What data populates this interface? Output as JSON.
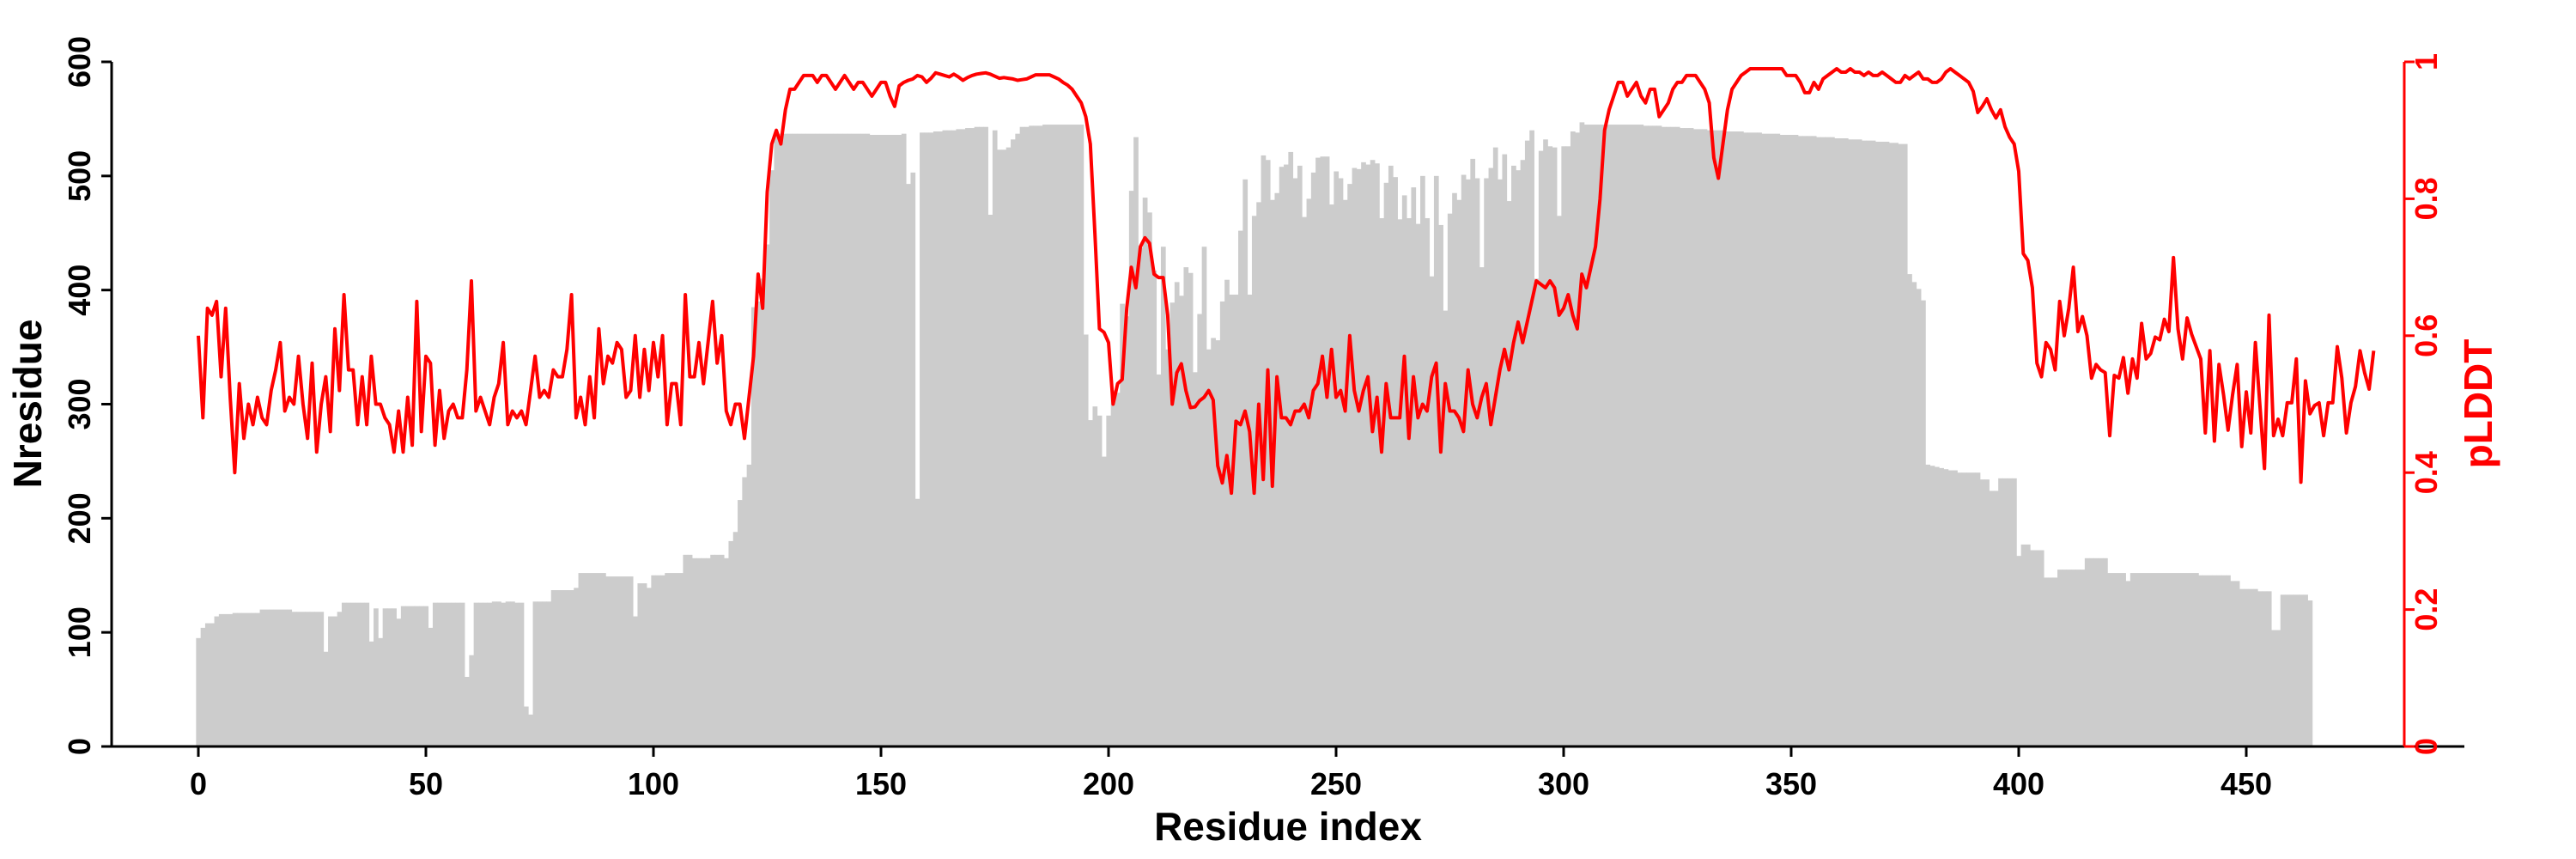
{
  "chart_data": {
    "type": "bar+line",
    "xlabel": "Residue index",
    "ylabel_left": "Nresidue",
    "ylabel_right": "pLDDT",
    "xlim": [
      -19,
      497
    ],
    "ylim_left": [
      0,
      600
    ],
    "ylim_right": [
      0,
      1
    ],
    "x_ticks": [
      "0",
      "50",
      "100",
      "150",
      "200",
      "250",
      "300",
      "350",
      "400",
      "450"
    ],
    "y_left_ticks": [
      "0",
      "100",
      "200",
      "300",
      "400",
      "500",
      "600"
    ],
    "y_right_ticks": [
      "0",
      "0.2",
      "0.4",
      "0.6",
      "0.8",
      "1"
    ],
    "grid": false,
    "colors": {
      "bars": "#cccccc",
      "line": "#ff0000",
      "axis": "#000000",
      "right_axis": "#ff0000"
    },
    "series": [
      {
        "name": "Nresidue",
        "type": "bar",
        "axis": "left",
        "values": [
          95,
          104,
          108,
          108,
          114,
          116,
          116,
          116,
          117,
          117,
          117,
          117,
          117,
          117,
          120,
          120,
          120,
          120,
          120,
          120,
          120,
          118,
          118,
          118,
          118,
          118,
          118,
          118,
          83,
          114,
          114,
          118,
          126,
          126,
          126,
          126,
          126,
          126,
          92,
          121,
          95,
          121,
          121,
          121,
          112,
          123,
          123,
          123,
          123,
          123,
          123,
          104,
          126,
          126,
          126,
          126,
          126,
          126,
          126,
          61,
          80,
          126,
          126,
          126,
          126,
          127,
          127,
          126,
          127,
          127,
          126,
          126,
          35,
          28,
          127,
          127,
          127,
          127,
          137,
          137,
          137,
          137,
          137,
          139,
          152,
          152,
          152,
          152,
          152,
          152,
          149,
          149,
          149,
          149,
          149,
          149,
          114,
          143,
          143,
          139,
          150,
          150,
          150,
          152,
          152,
          152,
          152,
          168,
          168,
          165,
          165,
          165,
          165,
          168,
          168,
          168,
          165,
          180,
          188,
          216,
          236,
          247,
          385,
          390,
          410,
          440,
          505,
          535,
          537,
          537,
          537,
          537,
          537,
          537,
          537,
          537,
          537,
          537,
          537,
          537,
          537,
          537,
          537,
          537,
          537,
          537,
          537,
          537,
          536,
          536,
          536,
          536,
          536,
          536,
          536,
          537,
          493,
          503,
          217,
          538,
          538,
          538,
          539,
          539,
          540,
          540,
          540,
          541,
          541,
          542,
          542,
          543,
          543,
          543,
          466,
          540,
          523,
          523,
          525,
          532,
          537,
          543,
          543,
          544,
          544,
          544,
          545,
          545,
          545,
          545,
          545,
          545,
          545,
          545,
          545,
          361,
          286,
          298,
          290,
          254,
          290,
          312,
          310,
          388,
          377,
          487,
          534,
          437,
          481,
          468,
          417,
          326,
          438,
          348,
          389,
          407,
          395,
          420,
          415,
          328,
          379,
          438,
          348,
          358,
          356,
          390,
          409,
          396,
          396,
          452,
          497,
          396,
          465,
          477,
          518,
          514,
          479,
          485,
          508,
          510,
          521,
          498,
          509,
          464,
          480,
          503,
          516,
          517,
          517,
          475,
          504,
          498,
          479,
          493,
          507,
          506,
          512,
          510,
          514,
          511,
          463,
          494,
          509,
          499,
          462,
          483,
          463,
          490,
          458,
          500,
          463,
          412,
          500,
          457,
          382,
          467,
          485,
          479,
          501,
          497,
          515,
          498,
          420,
          498,
          507,
          525,
          497,
          519,
          478,
          509,
          505,
          514,
          531,
          540,
          410,
          522,
          532,
          526,
          525,
          465,
          526,
          526,
          539,
          538,
          547,
          545,
          545,
          545,
          545,
          545,
          545,
          545,
          545,
          545,
          545,
          545,
          545,
          545,
          544,
          544,
          544,
          544,
          543,
          543,
          543,
          543,
          542,
          542,
          542,
          541,
          541,
          541,
          540,
          540,
          540,
          540,
          539,
          539,
          539,
          539,
          538,
          538,
          538,
          538,
          537,
          537,
          537,
          537,
          536,
          536,
          536,
          536,
          535,
          535,
          535,
          535,
          534,
          534,
          534,
          534,
          533,
          533,
          533,
          532,
          532,
          532,
          531,
          531,
          531,
          530,
          530,
          530,
          529,
          529,
          528,
          528,
          414,
          407,
          401,
          391,
          247,
          246,
          245,
          244,
          243,
          242,
          242,
          240,
          240,
          240,
          240,
          240,
          234,
          234,
          224,
          224,
          235,
          235,
          235,
          235,
          167,
          177,
          177,
          172,
          172,
          172,
          148,
          148,
          148,
          155,
          155,
          155,
          155,
          155,
          155,
          165,
          165,
          165,
          165,
          165,
          152,
          152,
          152,
          152,
          145,
          152,
          152,
          152,
          152,
          152,
          152,
          152,
          152,
          152,
          152,
          152,
          152,
          152,
          152,
          152,
          150,
          150,
          150,
          150,
          150,
          150,
          150,
          145,
          145,
          138,
          138,
          138,
          138,
          136,
          136,
          136,
          102,
          102,
          133,
          133,
          133,
          133,
          133,
          133,
          128
        ]
      },
      {
        "name": "pLDDT",
        "type": "line",
        "axis": "right",
        "values": [
          0.6,
          0.48,
          0.64,
          0.63,
          0.65,
          0.54,
          0.64,
          0.51,
          0.4,
          0.53,
          0.45,
          0.5,
          0.47,
          0.51,
          0.48,
          0.47,
          0.52,
          0.55,
          0.59,
          0.49,
          0.51,
          0.5,
          0.57,
          0.5,
          0.45,
          0.56,
          0.43,
          0.5,
          0.54,
          0.46,
          0.61,
          0.52,
          0.66,
          0.55,
          0.55,
          0.47,
          0.54,
          0.47,
          0.57,
          0.5,
          0.5,
          0.48,
          0.47,
          0.43,
          0.49,
          0.43,
          0.51,
          0.44,
          0.65,
          0.46,
          0.57,
          0.56,
          0.44,
          0.52,
          0.45,
          0.49,
          0.5,
          0.48,
          0.48,
          0.55,
          0.68,
          0.49,
          0.51,
          0.49,
          0.47,
          0.51,
          0.53,
          0.59,
          0.47,
          0.49,
          0.48,
          0.49,
          0.47,
          0.52,
          0.57,
          0.51,
          0.52,
          0.51,
          0.55,
          0.54,
          0.54,
          0.58,
          0.66,
          0.48,
          0.51,
          0.47,
          0.54,
          0.48,
          0.61,
          0.53,
          0.57,
          0.56,
          0.59,
          0.58,
          0.51,
          0.52,
          0.6,
          0.51,
          0.58,
          0.52,
          0.59,
          0.54,
          0.6,
          0.47,
          0.53,
          0.53,
          0.47,
          0.66,
          0.54,
          0.54,
          0.59,
          0.53,
          0.59,
          0.65,
          0.56,
          0.6,
          0.49,
          0.47,
          0.5,
          0.5,
          0.45,
          0.51,
          0.57,
          0.69,
          0.64,
          0.81,
          0.88,
          0.9,
          0.88,
          0.93,
          0.96,
          0.96,
          0.97,
          0.98,
          0.98,
          0.98,
          0.97,
          0.98,
          0.98,
          0.97,
          0.96,
          0.97,
          0.98,
          0.97,
          0.96,
          0.97,
          0.97,
          0.96,
          0.95,
          0.96,
          0.97,
          0.97,
          0.95,
          0.935,
          0.965,
          0.97,
          0.973,
          0.975,
          0.98,
          0.978,
          0.97,
          0.976,
          0.984,
          0.982,
          0.98,
          0.978,
          0.982,
          0.978,
          0.973,
          0.977,
          0.98,
          0.982,
          0.983,
          0.984,
          0.982,
          0.979,
          0.976,
          0.977,
          0.976,
          0.975,
          0.973,
          0.974,
          0.975,
          0.978,
          0.981,
          0.981,
          0.981,
          0.981,
          0.978,
          0.975,
          0.97,
          0.966,
          0.96,
          0.95,
          0.94,
          0.92,
          0.88,
          0.75,
          0.61,
          0.605,
          0.59,
          0.5,
          0.53,
          0.536,
          0.64,
          0.7,
          0.67,
          0.73,
          0.743,
          0.735,
          0.69,
          0.685,
          0.685,
          0.63,
          0.5,
          0.546,
          0.559,
          0.52,
          0.495,
          0.496,
          0.505,
          0.51,
          0.52,
          0.506,
          0.41,
          0.385,
          0.425,
          0.37,
          0.475,
          0.47,
          0.49,
          0.46,
          0.37,
          0.5,
          0.39,
          0.55,
          0.38,
          0.54,
          0.48,
          0.48,
          0.47,
          0.49,
          0.49,
          0.5,
          0.48,
          0.52,
          0.53,
          0.57,
          0.51,
          0.58,
          0.51,
          0.52,
          0.49,
          0.6,
          0.52,
          0.49,
          0.52,
          0.54,
          0.46,
          0.51,
          0.43,
          0.53,
          0.48,
          0.48,
          0.48,
          0.57,
          0.45,
          0.54,
          0.48,
          0.5,
          0.49,
          0.54,
          0.56,
          0.43,
          0.53,
          0.49,
          0.49,
          0.48,
          0.46,
          0.55,
          0.5,
          0.48,
          0.51,
          0.53,
          0.47,
          0.51,
          0.55,
          0.58,
          0.55,
          0.59,
          0.62,
          0.59,
          0.62,
          0.65,
          0.68,
          0.675,
          0.67,
          0.68,
          0.67,
          0.63,
          0.64,
          0.66,
          0.63,
          0.61,
          0.69,
          0.67,
          0.7,
          0.73,
          0.8,
          0.9,
          0.93,
          0.95,
          0.97,
          0.97,
          0.95,
          0.96,
          0.97,
          0.95,
          0.94,
          0.96,
          0.96,
          0.92,
          0.93,
          0.94,
          0.96,
          0.97,
          0.97,
          0.98,
          0.98,
          0.98,
          0.97,
          0.96,
          0.94,
          0.86,
          0.83,
          0.88,
          0.93,
          0.96,
          0.97,
          0.98,
          0.985,
          0.99,
          0.99,
          0.99,
          0.99,
          0.99,
          0.99,
          0.99,
          0.99,
          0.98,
          0.98,
          0.98,
          0.97,
          0.955,
          0.955,
          0.97,
          0.96,
          0.975,
          0.98,
          0.985,
          0.99,
          0.985,
          0.985,
          0.99,
          0.985,
          0.985,
          0.98,
          0.985,
          0.98,
          0.98,
          0.985,
          0.98,
          0.975,
          0.97,
          0.97,
          0.98,
          0.975,
          0.98,
          0.985,
          0.975,
          0.975,
          0.97,
          0.97,
          0.975,
          0.985,
          0.99,
          0.985,
          0.98,
          0.975,
          0.97,
          0.957,
          0.926,
          0.935,
          0.946,
          0.93,
          0.918,
          0.93,
          0.905,
          0.89,
          0.88,
          0.84,
          0.72,
          0.71,
          0.67,
          0.56,
          0.54,
          0.59,
          0.58,
          0.55,
          0.65,
          0.6,
          0.64,
          0.7,
          0.606,
          0.628,
          0.6,
          0.538,
          0.558,
          0.55,
          0.546,
          0.454,
          0.542,
          0.538,
          0.568,
          0.516,
          0.566,
          0.538,
          0.618,
          0.566,
          0.574,
          0.598,
          0.594,
          0.624,
          0.606,
          0.714,
          0.61,
          0.566,
          0.626,
          0.602,
          0.584,
          0.566,
          0.458,
          0.578,
          0.446,
          0.558,
          0.514,
          0.462,
          0.514,
          0.558,
          0.438,
          0.518,
          0.458,
          0.59,
          0.498,
          0.406,
          0.63,
          0.454,
          0.478,
          0.454,
          0.502,
          0.502,
          0.566,
          0.386,
          0.534,
          0.486,
          0.498,
          0.502,
          0.454,
          0.502,
          0.502,
          0.584,
          0.538,
          0.458,
          0.502,
          0.526,
          0.578,
          0.546,
          0.522,
          0.578
        ]
      }
    ]
  }
}
